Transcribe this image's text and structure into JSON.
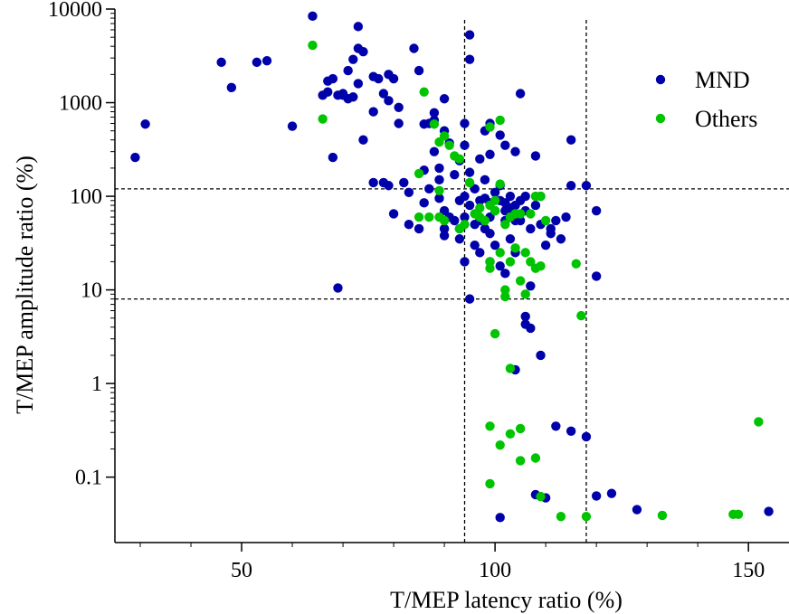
{
  "chart_data": {
    "type": "scatter",
    "xlabel": "T/MEP latency ratio (%)",
    "ylabel": "T/MEP amplitude ratio (%)",
    "xscale": "linear",
    "yscale": "log",
    "xlim": [
      25,
      158
    ],
    "ylim": [
      0.02,
      10000
    ],
    "xticks": [
      50,
      100,
      150
    ],
    "xtick_labels": [
      "50",
      "100",
      "150"
    ],
    "yticks": [
      0.1,
      1,
      10,
      100,
      1000,
      10000
    ],
    "ytick_labels": [
      "0.1",
      "1",
      "10",
      "100",
      "1000",
      "10000"
    ],
    "reference_lines": {
      "x": [
        94,
        118
      ],
      "y": [
        8,
        120
      ]
    },
    "legend_position": "top-right",
    "series": [
      {
        "name": "MND",
        "color": "#0000aa",
        "points": [
          [
            29,
            260
          ],
          [
            31,
            590
          ],
          [
            46,
            2700
          ],
          [
            48,
            1450
          ],
          [
            53,
            2700
          ],
          [
            55,
            2800
          ],
          [
            60,
            560
          ],
          [
            64,
            8400
          ],
          [
            66,
            1200
          ],
          [
            67,
            1700
          ],
          [
            67,
            1300
          ],
          [
            68,
            1800
          ],
          [
            68,
            260
          ],
          [
            69,
            1200
          ],
          [
            69,
            10.5
          ],
          [
            70,
            1200
          ],
          [
            70,
            1250
          ],
          [
            71,
            2200
          ],
          [
            71,
            1100
          ],
          [
            72,
            1150
          ],
          [
            72,
            2900
          ],
          [
            73,
            3800
          ],
          [
            73,
            6500
          ],
          [
            73,
            1600
          ],
          [
            74,
            3500
          ],
          [
            74,
            400
          ],
          [
            76,
            800
          ],
          [
            76,
            1900
          ],
          [
            76,
            140
          ],
          [
            77,
            1800
          ],
          [
            78,
            1250
          ],
          [
            78,
            140
          ],
          [
            79,
            2000
          ],
          [
            79,
            1050
          ],
          [
            79,
            130
          ],
          [
            80,
            65
          ],
          [
            80,
            1800
          ],
          [
            81,
            600
          ],
          [
            81,
            890
          ],
          [
            82,
            140
          ],
          [
            83,
            110
          ],
          [
            83,
            50
          ],
          [
            84,
            3800
          ],
          [
            85,
            2200
          ],
          [
            85,
            45
          ],
          [
            86,
            590
          ],
          [
            86,
            190
          ],
          [
            86,
            85
          ],
          [
            87,
            600
          ],
          [
            87,
            120
          ],
          [
            88,
            300
          ],
          [
            88,
            780
          ],
          [
            88,
            650
          ],
          [
            89,
            200
          ],
          [
            89,
            150
          ],
          [
            89,
            95
          ],
          [
            90,
            1100
          ],
          [
            90,
            500
          ],
          [
            90,
            70
          ],
          [
            90,
            45
          ],
          [
            90,
            38
          ],
          [
            91,
            370
          ],
          [
            91,
            60
          ],
          [
            92,
            170
          ],
          [
            92,
            55
          ],
          [
            93,
            240
          ],
          [
            93,
            90
          ],
          [
            93,
            45
          ],
          [
            93,
            35
          ],
          [
            94,
            600
          ],
          [
            94,
            350
          ],
          [
            94,
            100
          ],
          [
            94,
            60
          ],
          [
            94,
            20
          ],
          [
            95,
            5300
          ],
          [
            95,
            2900
          ],
          [
            95,
            180
          ],
          [
            95,
            80
          ],
          [
            95,
            8
          ],
          [
            96,
            120
          ],
          [
            96,
            50
          ],
          [
            96,
            30
          ],
          [
            97,
            250
          ],
          [
            97,
            90
          ],
          [
            97,
            55
          ],
          [
            97,
            25
          ],
          [
            98,
            500
          ],
          [
            98,
            150
          ],
          [
            98,
            95
          ],
          [
            98,
            45
          ],
          [
            99,
            600
          ],
          [
            99,
            280
          ],
          [
            99,
            85
          ],
          [
            99,
            60
          ],
          [
            99,
            40
          ],
          [
            99,
            20
          ],
          [
            100,
            110
          ],
          [
            100,
            70
          ],
          [
            100,
            30
          ],
          [
            101,
            450
          ],
          [
            101,
            130
          ],
          [
            101,
            90
          ],
          [
            101,
            18
          ],
          [
            102,
            350
          ],
          [
            102,
            85
          ],
          [
            102,
            70
          ],
          [
            102,
            55
          ],
          [
            102,
            15
          ],
          [
            103,
            100
          ],
          [
            103,
            75
          ],
          [
            103,
            60
          ],
          [
            103,
            35
          ],
          [
            104,
            300
          ],
          [
            104,
            80
          ],
          [
            104,
            55
          ],
          [
            104,
            25
          ],
          [
            104,
            1.4
          ],
          [
            105,
            1250
          ],
          [
            105,
            90
          ],
          [
            105,
            55
          ],
          [
            106,
            100
          ],
          [
            106,
            70
          ],
          [
            106,
            5.2
          ],
          [
            106,
            4.3
          ],
          [
            107,
            45
          ],
          [
            107,
            11
          ],
          [
            107,
            3.9
          ],
          [
            108,
            270
          ],
          [
            108,
            80
          ],
          [
            109,
            100
          ],
          [
            109,
            50
          ],
          [
            109,
            2
          ],
          [
            110,
            30
          ],
          [
            111,
            40
          ],
          [
            111,
            45
          ],
          [
            112,
            55
          ],
          [
            113,
            35
          ],
          [
            114,
            60
          ],
          [
            115,
            400
          ],
          [
            115,
            130
          ],
          [
            118,
            130
          ],
          [
            120,
            70
          ],
          [
            120,
            14
          ],
          [
            108,
            0.065
          ],
          [
            110,
            0.06
          ],
          [
            112,
            0.35
          ],
          [
            115,
            0.31
          ],
          [
            118,
            0.27
          ],
          [
            120,
            0.063
          ],
          [
            123,
            0.067
          ],
          [
            128,
            0.045
          ],
          [
            101,
            0.037
          ],
          [
            154,
            0.043
          ]
        ]
      },
      {
        "name": "Others",
        "color": "#00c400",
        "points": [
          [
            64,
            4100
          ],
          [
            66,
            670
          ],
          [
            85,
            175
          ],
          [
            85,
            60
          ],
          [
            86,
            1300
          ],
          [
            87,
            60
          ],
          [
            88,
            590
          ],
          [
            89,
            380
          ],
          [
            89,
            60
          ],
          [
            89,
            115
          ],
          [
            90,
            440
          ],
          [
            90,
            55
          ],
          [
            91,
            350
          ],
          [
            92,
            270
          ],
          [
            93,
            250
          ],
          [
            93,
            45
          ],
          [
            94,
            50
          ],
          [
            95,
            140
          ],
          [
            96,
            65
          ],
          [
            97,
            60
          ],
          [
            97,
            75
          ],
          [
            98,
            55
          ],
          [
            99,
            550
          ],
          [
            99,
            80
          ],
          [
            99,
            20
          ],
          [
            99,
            17
          ],
          [
            100,
            90
          ],
          [
            100,
            70
          ],
          [
            100,
            3.4
          ],
          [
            101,
            650
          ],
          [
            101,
            135
          ],
          [
            101,
            25
          ],
          [
            102,
            50
          ],
          [
            102,
            10
          ],
          [
            102,
            8.5
          ],
          [
            103,
            60
          ],
          [
            103,
            20
          ],
          [
            103,
            1.45
          ],
          [
            104,
            65
          ],
          [
            104,
            28
          ],
          [
            105,
            65
          ],
          [
            105,
            12.5
          ],
          [
            106,
            9
          ],
          [
            106,
            25
          ],
          [
            107,
            65
          ],
          [
            107,
            20
          ],
          [
            108,
            100
          ],
          [
            108,
            17
          ],
          [
            109,
            100
          ],
          [
            109,
            18
          ],
          [
            110,
            55
          ],
          [
            116,
            19
          ],
          [
            117,
            5.3
          ],
          [
            99,
            0.35
          ],
          [
            99,
            0.085
          ],
          [
            101,
            0.22
          ],
          [
            103,
            0.29
          ],
          [
            105,
            0.33
          ],
          [
            105,
            0.15
          ],
          [
            108,
            0.16
          ],
          [
            109,
            0.062
          ],
          [
            113,
            0.038
          ],
          [
            118,
            0.038
          ],
          [
            133,
            0.039
          ],
          [
            147,
            0.04
          ],
          [
            148,
            0.04
          ],
          [
            152,
            0.39
          ]
        ]
      }
    ]
  }
}
